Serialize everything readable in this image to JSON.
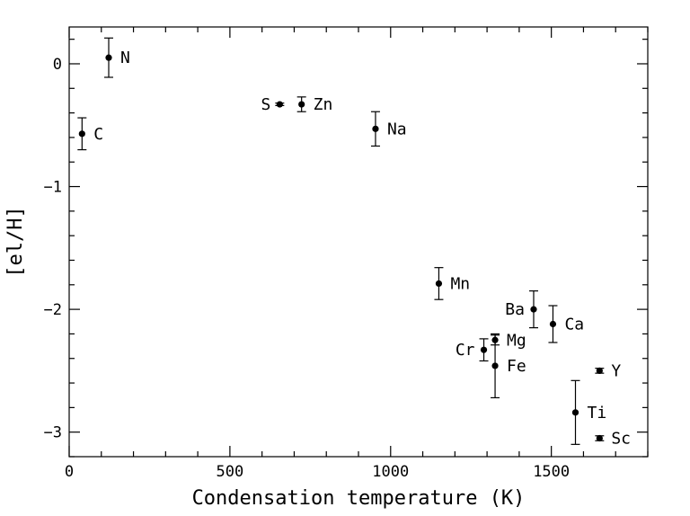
{
  "chart_data": {
    "type": "scatter",
    "xlabel": "Condensation temperature (K)",
    "ylabel": "[el/H]",
    "xlim": [
      0,
      1800
    ],
    "ylim": [
      -3.2,
      0.3
    ],
    "x_ticks": [
      0,
      500,
      1000,
      1500
    ],
    "y_ticks": [
      0,
      -1,
      -2,
      -3
    ],
    "grid": false,
    "points": [
      {
        "label": "N",
        "x": 123,
        "y": 0.05,
        "err": 0.16,
        "label_side": "right"
      },
      {
        "label": "C",
        "x": 40,
        "y": -0.57,
        "err": 0.13,
        "label_side": "right"
      },
      {
        "label": "S",
        "x": 655,
        "y": -0.33,
        "err": 0.01,
        "label_side": "left"
      },
      {
        "label": "Zn",
        "x": 723,
        "y": -0.33,
        "err": 0.06,
        "label_side": "right"
      },
      {
        "label": "Na",
        "x": 953,
        "y": -0.53,
        "err": 0.14,
        "label_side": "right"
      },
      {
        "label": "Mn",
        "x": 1150,
        "y": -1.79,
        "err": 0.13,
        "label_side": "right"
      },
      {
        "label": "Ba",
        "x": 1445,
        "y": -2.0,
        "err": 0.15,
        "label_side": "left"
      },
      {
        "label": "Ca",
        "x": 1505,
        "y": -2.12,
        "err": 0.15,
        "label_side": "right"
      },
      {
        "label": "Mg",
        "x": 1325,
        "y": -2.25,
        "err": 0.04,
        "label_side": "right"
      },
      {
        "label": "Cr",
        "x": 1290,
        "y": -2.33,
        "err": 0.09,
        "label_side": "left"
      },
      {
        "label": "Fe",
        "x": 1325,
        "y": -2.46,
        "err": 0.26,
        "label_side": "right"
      },
      {
        "label": "Y",
        "x": 1650,
        "y": -2.5,
        "err": 0.02,
        "label_side": "right"
      },
      {
        "label": "Ti",
        "x": 1575,
        "y": -2.84,
        "err": 0.26,
        "label_side": "right"
      },
      {
        "label": "Sc",
        "x": 1650,
        "y": -3.05,
        "err": 0.02,
        "label_side": "right"
      }
    ]
  }
}
